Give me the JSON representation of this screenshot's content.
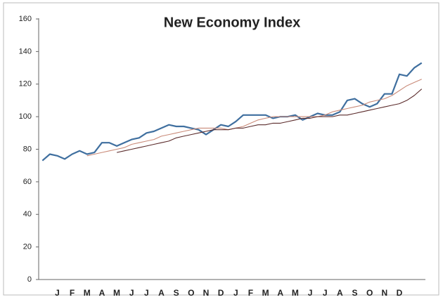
{
  "chart_data": {
    "type": "line",
    "title": "New Economy Index",
    "categories": [
      null,
      null,
      "J",
      null,
      "F",
      null,
      "M",
      null,
      "A",
      null,
      "M",
      null,
      "J",
      null,
      "J",
      null,
      "A",
      null,
      "S",
      null,
      "O",
      null,
      "N",
      null,
      "D",
      null,
      "J",
      null,
      "F",
      null,
      "M",
      null,
      "A",
      null,
      "M",
      null,
      "J",
      null,
      "J",
      null,
      "A",
      null,
      "S",
      null,
      "O",
      null,
      "N",
      null,
      "D",
      null,
      null,
      null
    ],
    "series": [
      {
        "color": "#3f6f9f",
        "values": [
          73,
          77,
          76,
          74,
          77,
          79,
          77,
          78,
          84,
          84,
          82,
          84,
          86,
          87,
          90,
          91,
          93,
          95,
          94,
          94,
          93,
          92,
          89,
          92,
          95,
          94,
          97,
          101,
          101,
          101,
          101,
          99,
          100,
          100,
          101,
          98,
          100,
          102,
          101,
          101,
          103,
          110,
          111,
          108,
          106,
          108,
          114,
          114,
          126,
          125,
          130,
          133
        ]
      },
      {
        "color": "#c98a78",
        "values": [
          null,
          null,
          null,
          null,
          null,
          null,
          76,
          77,
          78,
          79,
          80,
          81,
          83,
          84,
          85,
          86,
          88,
          89,
          90,
          91,
          92,
          93,
          93,
          93,
          93,
          92,
          93,
          94,
          96,
          98,
          99,
          100,
          100,
          100,
          100,
          100,
          100,
          100,
          101,
          103,
          104,
          105,
          106,
          107,
          109,
          110,
          111,
          113,
          116,
          119,
          121,
          123
        ]
      },
      {
        "color": "#5a2a2a",
        "values": [
          null,
          null,
          null,
          null,
          null,
          null,
          null,
          null,
          null,
          null,
          78,
          79,
          80,
          81,
          82,
          83,
          84,
          85,
          87,
          88,
          89,
          90,
          91,
          92,
          92,
          92,
          93,
          93,
          94,
          95,
          95,
          96,
          96,
          97,
          98,
          99,
          99,
          100,
          100,
          100,
          101,
          101,
          102,
          103,
          104,
          105,
          106,
          107,
          108,
          110,
          113,
          117
        ]
      }
    ],
    "ylim": [
      0,
      160
    ],
    "yticks": [
      0,
      20,
      40,
      60,
      80,
      100,
      120,
      140,
      160
    ],
    "grid": false
  }
}
